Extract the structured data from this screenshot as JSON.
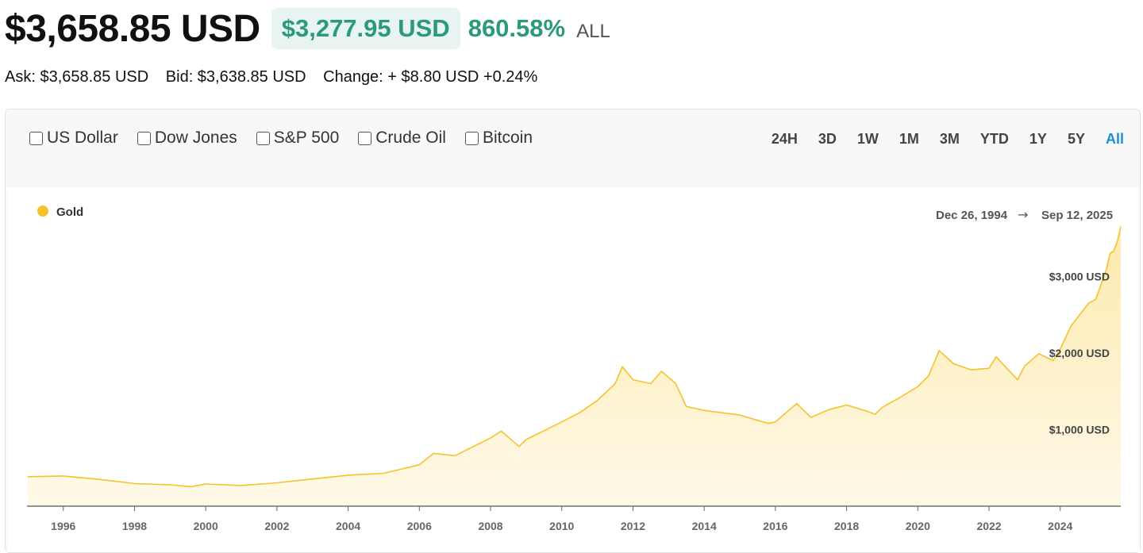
{
  "header": {
    "price": "$3,658.85 USD",
    "change_amount": "$3,277.95 USD",
    "change_percent": "860.58%",
    "period": "ALL"
  },
  "quote": {
    "ask": "Ask: $3,658.85 USD",
    "bid": "Bid: $3,638.85 USD",
    "change": "Change: + $8.80 USD +0.24%"
  },
  "compare": [
    {
      "label": "US Dollar",
      "checked": false
    },
    {
      "label": "Dow Jones",
      "checked": false
    },
    {
      "label": "S&P 500",
      "checked": false
    },
    {
      "label": "Crude Oil",
      "checked": false
    },
    {
      "label": "Bitcoin",
      "checked": false
    }
  ],
  "ranges": [
    "24H",
    "3D",
    "1W",
    "1M",
    "3M",
    "YTD",
    "1Y",
    "5Y",
    "All"
  ],
  "active_range": "All",
  "colors": {
    "gold_line": "#f5c22b",
    "gain_green": "#2b9a7a",
    "active_link": "#1a8fd1"
  },
  "chart_data": {
    "type": "area",
    "legend": {
      "label": "Gold",
      "position": "top-left"
    },
    "date_range": {
      "start": "Dec 26, 1994",
      "arrow": "→",
      "end": "Sep 12, 2025"
    },
    "xlim": [
      1994.98,
      2025.7
    ],
    "ylim": [
      0,
      3800
    ],
    "x_ticks": [
      1996,
      1998,
      2000,
      2002,
      2004,
      2006,
      2008,
      2010,
      2012,
      2014,
      2016,
      2018,
      2020,
      2022,
      2024
    ],
    "y_ticks": [
      {
        "value": 1000,
        "label": "$1,000 USD"
      },
      {
        "value": 2000,
        "label": "$2,000 USD"
      },
      {
        "value": 3000,
        "label": "$3,000 USD"
      }
    ],
    "grid": false,
    "series": [
      {
        "name": "Gold",
        "points": [
          [
            1995.0,
            385
          ],
          [
            1996.0,
            395
          ],
          [
            1997.0,
            350
          ],
          [
            1998.0,
            295
          ],
          [
            1999.0,
            280
          ],
          [
            1999.6,
            255
          ],
          [
            2000.0,
            290
          ],
          [
            2001.0,
            270
          ],
          [
            2002.0,
            305
          ],
          [
            2003.0,
            355
          ],
          [
            2004.0,
            405
          ],
          [
            2005.0,
            430
          ],
          [
            2006.0,
            540
          ],
          [
            2006.4,
            690
          ],
          [
            2007.0,
            660
          ],
          [
            2008.0,
            890
          ],
          [
            2008.3,
            980
          ],
          [
            2008.8,
            780
          ],
          [
            2009.0,
            870
          ],
          [
            2010.0,
            1100
          ],
          [
            2010.5,
            1220
          ],
          [
            2011.0,
            1380
          ],
          [
            2011.5,
            1600
          ],
          [
            2011.7,
            1820
          ],
          [
            2012.0,
            1650
          ],
          [
            2012.5,
            1600
          ],
          [
            2012.8,
            1760
          ],
          [
            2013.0,
            1680
          ],
          [
            2013.2,
            1600
          ],
          [
            2013.5,
            1300
          ],
          [
            2014.0,
            1250
          ],
          [
            2015.0,
            1190
          ],
          [
            2015.8,
            1080
          ],
          [
            2016.0,
            1100
          ],
          [
            2016.6,
            1340
          ],
          [
            2017.0,
            1160
          ],
          [
            2017.5,
            1260
          ],
          [
            2018.0,
            1320
          ],
          [
            2018.5,
            1250
          ],
          [
            2018.8,
            1200
          ],
          [
            2019.0,
            1290
          ],
          [
            2019.5,
            1420
          ],
          [
            2020.0,
            1560
          ],
          [
            2020.3,
            1700
          ],
          [
            2020.6,
            2030
          ],
          [
            2021.0,
            1860
          ],
          [
            2021.5,
            1780
          ],
          [
            2022.0,
            1800
          ],
          [
            2022.2,
            1950
          ],
          [
            2022.8,
            1650
          ],
          [
            2023.0,
            1830
          ],
          [
            2023.4,
            1990
          ],
          [
            2023.8,
            1900
          ],
          [
            2024.0,
            2050
          ],
          [
            2024.3,
            2350
          ],
          [
            2024.8,
            2650
          ],
          [
            2025.0,
            2700
          ],
          [
            2025.3,
            3100
          ],
          [
            2025.4,
            3300
          ],
          [
            2025.5,
            3330
          ],
          [
            2025.6,
            3450
          ],
          [
            2025.7,
            3650
          ]
        ]
      }
    ]
  }
}
